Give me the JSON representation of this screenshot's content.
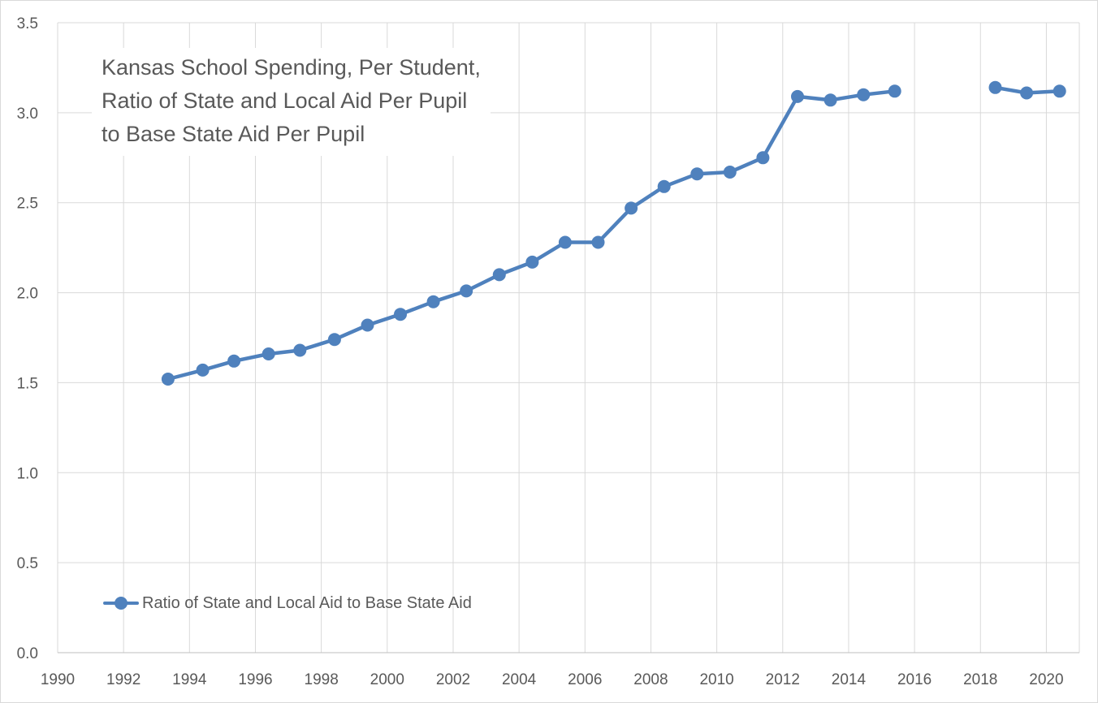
{
  "chart_data": {
    "type": "line",
    "title_lines": [
      "Kansas School Spending, Per Student,",
      "Ratio of State and Local Aid Per Pupil",
      "to Base State Aid Per Pupil"
    ],
    "xlabel": "",
    "ylabel": "",
    "xlim": [
      1990,
      2021
    ],
    "ylim": [
      0,
      3.5
    ],
    "x_ticks": [
      "1990",
      "1992",
      "1994",
      "1996",
      "1998",
      "2000",
      "2002",
      "2004",
      "2006",
      "2008",
      "2010",
      "2012",
      "2014",
      "2016",
      "2018",
      "2020"
    ],
    "y_ticks": [
      "0.0",
      "0.5",
      "1.0",
      "1.5",
      "2.0",
      "2.5",
      "3.0",
      "3.5"
    ],
    "grid": true,
    "legend_position": "bottom-left",
    "series": [
      {
        "name": "Ratio of State and Local Aid to Base State Aid",
        "color": "#4f81bd",
        "marker": "circle",
        "points": [
          {
            "x": 1993.35,
            "y": 1.52
          },
          {
            "x": 1994.4,
            "y": 1.57
          },
          {
            "x": 1995.35,
            "y": 1.62
          },
          {
            "x": 1996.4,
            "y": 1.66
          },
          {
            "x": 1997.35,
            "y": 1.68
          },
          {
            "x": 1998.4,
            "y": 1.74
          },
          {
            "x": 1999.4,
            "y": 1.82
          },
          {
            "x": 2000.4,
            "y": 1.88
          },
          {
            "x": 2001.4,
            "y": 1.95
          },
          {
            "x": 2002.4,
            "y": 2.01
          },
          {
            "x": 2003.4,
            "y": 2.1
          },
          {
            "x": 2004.4,
            "y": 2.17
          },
          {
            "x": 2005.4,
            "y": 2.28
          },
          {
            "x": 2006.4,
            "y": 2.28
          },
          {
            "x": 2007.4,
            "y": 2.47
          },
          {
            "x": 2008.4,
            "y": 2.59
          },
          {
            "x": 2009.4,
            "y": 2.66
          },
          {
            "x": 2010.4,
            "y": 2.67
          },
          {
            "x": 2011.4,
            "y": 2.75
          },
          {
            "x": 2012.45,
            "y": 3.09
          },
          {
            "x": 2013.45,
            "y": 3.07
          },
          {
            "x": 2014.45,
            "y": 3.1
          },
          {
            "x": 2015.4,
            "y": 3.12
          },
          {
            "x": 2016.4,
            "y": null
          },
          {
            "x": 2017.4,
            "y": null
          },
          {
            "x": 2018.45,
            "y": 3.14
          },
          {
            "x": 2019.4,
            "y": 3.11
          },
          {
            "x": 2020.4,
            "y": 3.12
          }
        ]
      }
    ]
  }
}
